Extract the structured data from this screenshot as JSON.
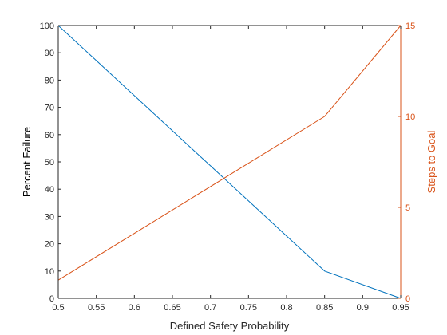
{
  "chart_data": {
    "type": "line",
    "xlabel": "Defined Safety Probability",
    "ylabel_left": "Percent Failure",
    "ylabel_right": "Steps to Goal",
    "xlim": [
      0.5,
      0.95
    ],
    "ylim_left": [
      0,
      100
    ],
    "ylim_right": [
      0,
      15
    ],
    "x_ticks": [
      "0.5",
      "0.55",
      "0.6",
      "0.65",
      "0.7",
      "0.75",
      "0.8",
      "0.85",
      "0.9",
      "0.95"
    ],
    "y_left_ticks": [
      "0",
      "10",
      "20",
      "30",
      "40",
      "50",
      "60",
      "70",
      "80",
      "90",
      "100"
    ],
    "y_right_ticks": [
      "0",
      "5",
      "10",
      "15"
    ],
    "grid": false,
    "series": [
      {
        "axis": "left",
        "color": "#0072BD",
        "x": [
          0.5,
          0.85,
          0.95
        ],
        "y": [
          100,
          10,
          0
        ]
      },
      {
        "axis": "right",
        "color": "#D95319",
        "x": [
          0.5,
          0.85,
          0.95
        ],
        "y": [
          1,
          10,
          15
        ]
      }
    ]
  },
  "colors": {
    "axis": "#262626",
    "right_axis": "#D95319"
  }
}
